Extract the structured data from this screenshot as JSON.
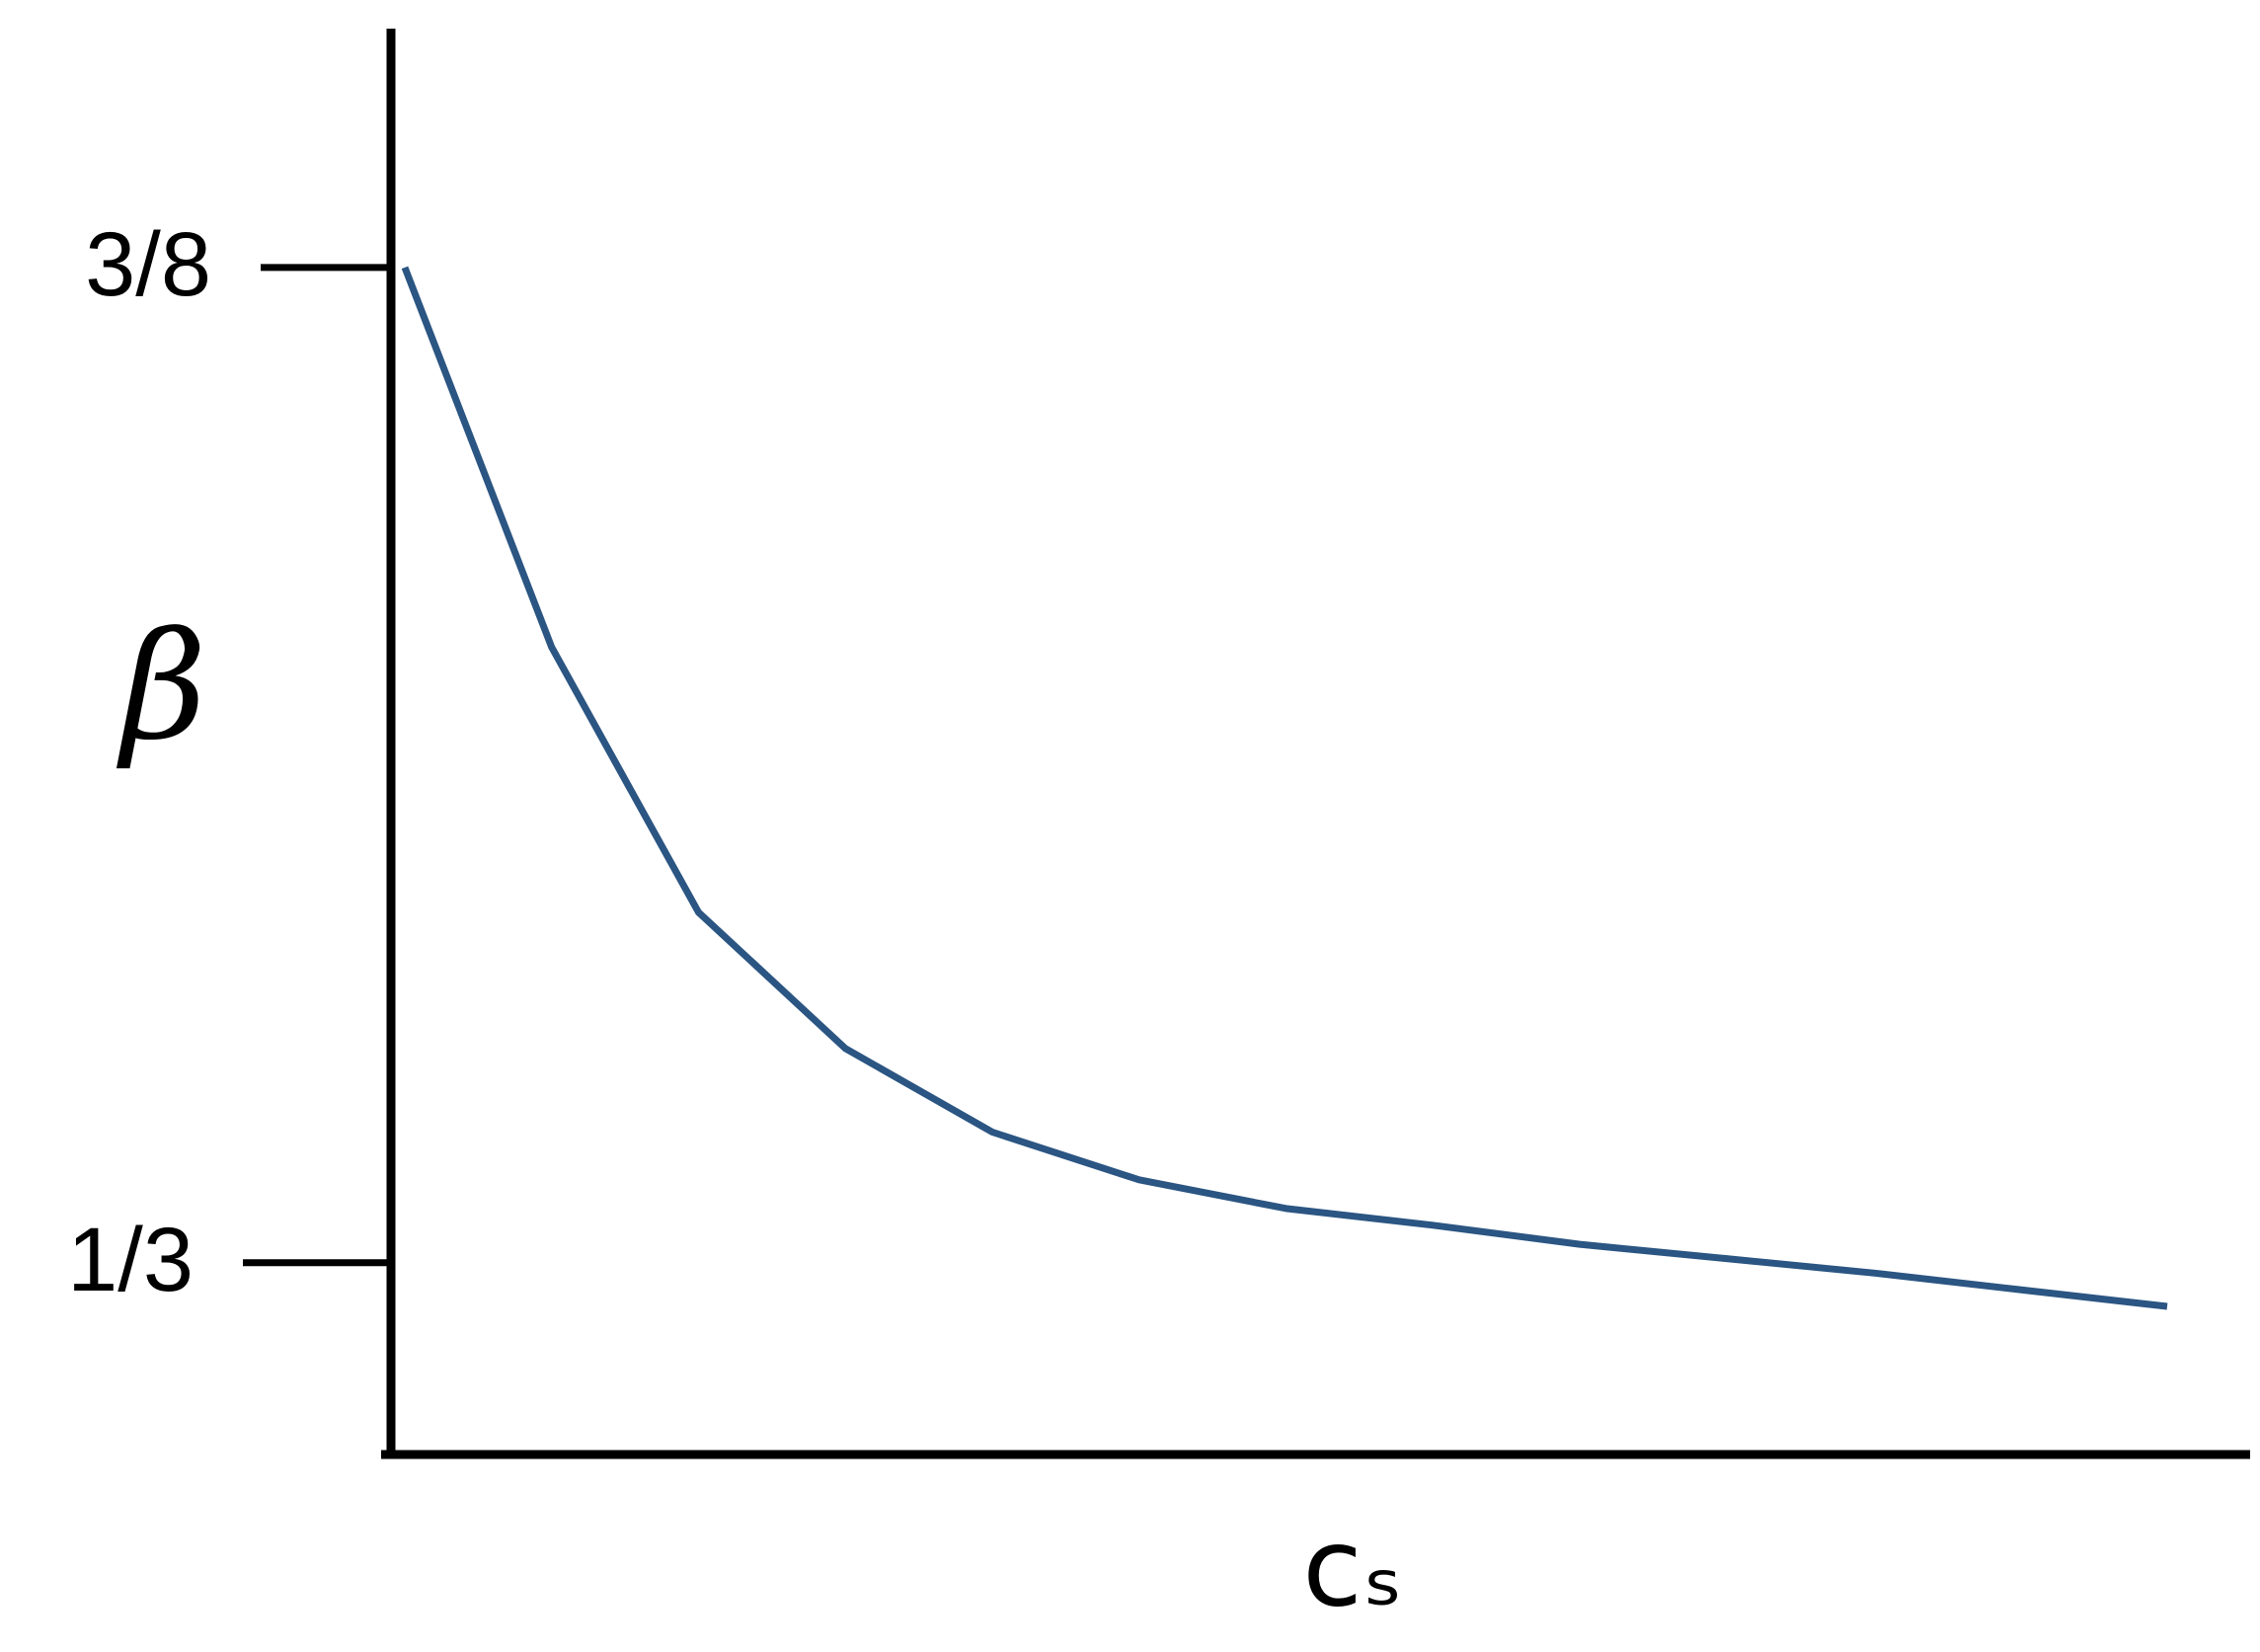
{
  "chart_data": {
    "type": "line",
    "xlabel": "cₛ",
    "ylabel": "β",
    "categories": [
      null,
      null,
      null,
      null,
      null,
      null,
      null,
      null,
      null,
      null,
      null,
      null,
      null
    ],
    "series": [
      {
        "color": "#2b5582",
        "values": [
          0.375,
          0.3591,
          0.348,
          0.3423,
          0.3388,
          0.3368,
          0.3356,
          0.3349,
          0.3341,
          0.3335,
          0.3329,
          0.3322,
          0.3315
        ]
      }
    ],
    "ylim": [
      0.3253,
      0.385
    ],
    "yticks": [
      {
        "value": 0.375,
        "label": "3/8"
      },
      {
        "value": 0.33333,
        "label": "1/3"
      }
    ],
    "grid": false
  }
}
